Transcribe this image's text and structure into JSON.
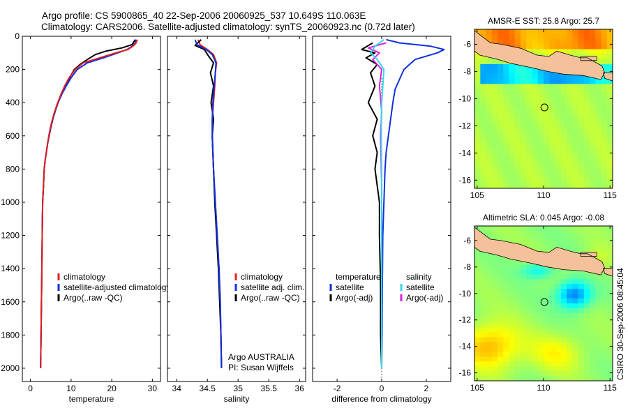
{
  "header": {
    "line1": "Argo profile: CS 5900865_40 22-Sep-2006 20060925_537 10.649S 110.063E",
    "line2": "Climatology: CARS2006. Satellite-adjusted climatology: synTS_20060923.nc (0.72d later)"
  },
  "side_label": "CSIRO 30-Sep-2006 08:45:04",
  "colors": {
    "clim": "#e02020",
    "sat": "#1030e0",
    "argo": "#000000",
    "sat_adj": "#30d8f0",
    "argo_adj": "#e020e0",
    "land": "#f5c19a"
  },
  "chart_data": [
    {
      "id": "temperature",
      "type": "line",
      "xlabel": "temperature",
      "ylabel": "",
      "xlim": [
        -2,
        32
      ],
      "ylim": [
        2080,
        0
      ],
      "xticks": [
        0,
        10,
        20,
        30
      ],
      "yticks": [
        0,
        200,
        400,
        600,
        800,
        1000,
        1200,
        1400,
        1600,
        1800,
        2000
      ],
      "legend": [
        "climatology",
        "satellite-adjusted climatology",
        "Argo(..raw -QC)"
      ],
      "series": [
        {
          "name": "climatology",
          "color": "#e02020",
          "x": [
            26.3,
            26.0,
            25.2,
            24,
            21,
            17,
            13,
            11,
            9.5,
            8.4,
            7.5,
            6.7,
            6.0,
            5.4,
            4.9,
            4.5,
            4.2,
            3.9,
            3.6,
            3.4,
            3.2,
            3.0,
            2.9,
            2.8,
            2.7,
            2.6,
            2.5
          ],
          "y": [
            20,
            40,
            60,
            80,
            100,
            130,
            160,
            200,
            250,
            300,
            350,
            400,
            450,
            500,
            550,
            600,
            650,
            700,
            750,
            800,
            900,
            1000,
            1200,
            1400,
            1600,
            1800,
            2000
          ]
        },
        {
          "name": "satellite-adjusted climatology",
          "color": "#1030e0",
          "x": [
            26.0,
            25.8,
            25.0,
            23.8,
            21.5,
            18,
            14,
            11.5,
            10.0,
            8.8,
            7.7,
            6.8,
            6.1,
            5.5,
            5.0,
            4.6,
            4.2,
            3.9,
            3.6,
            3.4,
            3.2,
            3.0,
            2.9,
            2.8,
            2.7,
            2.6,
            2.5
          ],
          "y": [
            20,
            40,
            60,
            80,
            100,
            130,
            160,
            200,
            250,
            300,
            350,
            400,
            450,
            500,
            550,
            600,
            650,
            700,
            750,
            800,
            900,
            1000,
            1200,
            1400,
            1600,
            1800,
            2000
          ]
        },
        {
          "name": "Argo(..raw -QC)",
          "color": "#000000",
          "x": [
            25.8,
            25.0,
            22.5,
            18.5,
            16.0,
            14.0,
            12.2,
            10.8,
            9.6,
            8.5,
            7.6,
            6.8,
            6.1,
            5.5,
            5.0,
            4.6,
            4.2,
            3.9,
            3.6,
            3.4,
            3.2,
            3.0,
            2.9,
            2.8,
            2.7,
            2.6,
            2.5
          ],
          "y": [
            20,
            50,
            70,
            90,
            110,
            140,
            170,
            200,
            250,
            300,
            350,
            400,
            450,
            500,
            550,
            600,
            650,
            700,
            750,
            800,
            900,
            1000,
            1200,
            1400,
            1600,
            1800,
            1990
          ]
        }
      ]
    },
    {
      "id": "salinity",
      "type": "line",
      "xlabel": "salinity",
      "xlim": [
        33.85,
        36.1
      ],
      "ylim": [
        2080,
        0
      ],
      "xticks": [
        34,
        34.5,
        35,
        35.5,
        36
      ],
      "yticks": [
        0,
        200,
        400,
        600,
        800,
        1000,
        1200,
        1400,
        1600,
        1800,
        2000
      ],
      "legend": [
        "climatology",
        "satellite adj. clim.",
        "Argo(..raw -QC)"
      ],
      "annotation": [
        "Argo AUSTRALIA",
        "PI: Susan Wijffels"
      ],
      "series": [
        {
          "name": "climatology",
          "color": "#e02020",
          "x": [
            34.35,
            34.38,
            34.5,
            34.6,
            34.65,
            34.63,
            34.62,
            34.6,
            34.58,
            34.58,
            34.6,
            34.63,
            34.66,
            34.69,
            34.71,
            34.72,
            34.73
          ],
          "y": [
            20,
            50,
            80,
            110,
            160,
            220,
            300,
            400,
            500,
            600,
            800,
            1000,
            1200,
            1400,
            1600,
            1800,
            2000
          ]
        },
        {
          "name": "satellite adj. clim.",
          "color": "#1030e0",
          "x": [
            34.3,
            34.33,
            34.48,
            34.58,
            34.64,
            34.63,
            34.61,
            34.59,
            34.58,
            34.58,
            34.6,
            34.63,
            34.66,
            34.69,
            34.71,
            34.72,
            34.73
          ],
          "y": [
            20,
            50,
            80,
            110,
            160,
            220,
            300,
            400,
            500,
            600,
            800,
            1000,
            1200,
            1400,
            1600,
            1800,
            2000
          ]
        },
        {
          "name": "Argo(..raw -QC)",
          "color": "#000000",
          "x": [
            34.4,
            34.3,
            34.45,
            34.52,
            34.6,
            34.55,
            34.6,
            34.56,
            34.6,
            34.58,
            34.6,
            34.62,
            34.65,
            34.68,
            34.7,
            34.72,
            34.73
          ],
          "y": [
            20,
            55,
            80,
            120,
            160,
            220,
            300,
            400,
            500,
            600,
            800,
            1000,
            1200,
            1400,
            1600,
            1800,
            1990
          ]
        }
      ]
    },
    {
      "id": "difference",
      "type": "line",
      "xlabel": "difference from climatology",
      "xlim": [
        -3.1,
        3.1
      ],
      "ylim": [
        2080,
        0
      ],
      "xticks": [
        -2,
        0,
        2
      ],
      "yticks": [
        0,
        200,
        400,
        600,
        800,
        1000,
        1200,
        1400,
        1600,
        1800,
        2000
      ],
      "legend_left_title": "temperature",
      "legend_right_title": "salinity",
      "legend": [
        "satellite",
        "Argo(-adj)",
        "satellite",
        "Argo(-adj)"
      ],
      "series": [
        {
          "name": "temperature satellite",
          "color": "#1030e0",
          "x": [
            0.2,
            0.8,
            2.2,
            2.8,
            2.5,
            1.5,
            1.0,
            0.8,
            0.6,
            0.5,
            0.4,
            0.3,
            0.2,
            0.15,
            0.1,
            0.05,
            0.03,
            0.02,
            0.0
          ],
          "y": [
            20,
            40,
            60,
            80,
            100,
            140,
            200,
            260,
            320,
            400,
            500,
            600,
            700,
            800,
            1000,
            1200,
            1500,
            1800,
            2000
          ]
        },
        {
          "name": "temperature Argo(-adj)",
          "color": "#000000",
          "x": [
            -0.4,
            -0.9,
            -0.3,
            -0.7,
            -0.2,
            -0.5,
            -0.3,
            -0.6,
            -0.2,
            -0.4,
            -0.2,
            -0.3,
            -0.1,
            -0.1,
            -0.05,
            -0.05,
            0.0
          ],
          "y": [
            40,
            80,
            100,
            130,
            170,
            220,
            300,
            400,
            500,
            600,
            700,
            800,
            1000,
            1200,
            1500,
            1800,
            2000
          ]
        },
        {
          "name": "salinity satellite",
          "color": "#30d8f0",
          "x": [
            0.1,
            -0.3,
            -0.5,
            -0.2,
            0.1,
            0.05,
            0.0,
            -0.02,
            0.0,
            0.0,
            0.0,
            0.0
          ],
          "y": [
            20,
            60,
            100,
            140,
            200,
            300,
            400,
            600,
            800,
            1200,
            1600,
            2000
          ]
        },
        {
          "name": "salinity Argo(-adj)",
          "color": "#e020e0",
          "x": [
            0.2,
            -0.6,
            -0.1,
            -0.4,
            0.0,
            -0.1,
            0.0,
            -0.05,
            0.0,
            0.0,
            0.0
          ],
          "y": [
            40,
            70,
            100,
            140,
            200,
            300,
            450,
            600,
            900,
            1400,
            2000
          ]
        }
      ]
    },
    {
      "id": "sst-map",
      "type": "heatmap",
      "title": "AMSR-E SST: 25.8  Argo: 25.7",
      "xticks": [
        105,
        110,
        115
      ],
      "yticks": [
        -6,
        -8,
        -10,
        -12,
        -14,
        -16
      ],
      "xlim": [
        104.8,
        115.2
      ],
      "ylim": [
        -16.6,
        -4.9
      ],
      "marker": {
        "lon": 110.063,
        "lat": -10.649
      }
    },
    {
      "id": "sla-map",
      "type": "heatmap",
      "title": "Altimetric SLA: 0.045  Argo: -0.08",
      "xticks": [
        105,
        110,
        115
      ],
      "yticks": [
        -6,
        -8,
        -10,
        -12,
        -14,
        -16
      ],
      "xlim": [
        104.8,
        115.2
      ],
      "ylim": [
        -16.6,
        -4.9
      ],
      "marker": {
        "lon": 110.063,
        "lat": -10.649
      }
    }
  ]
}
